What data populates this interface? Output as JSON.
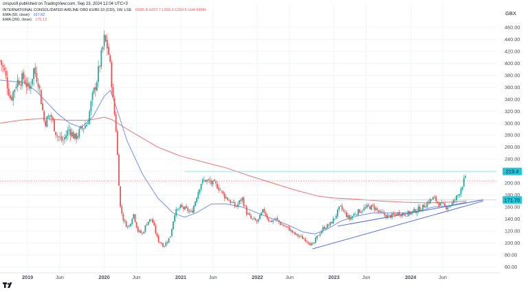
{
  "header": {
    "line": "crispus9 published on TradingView.com, Sep 23, 2024 12:04 UTC+3"
  },
  "symbol": {
    "name": "INTERNATIONAL CONSOLIDATED AIRLINE ORD EUR0.10 (CDI), 1W, LSE",
    "ohlc": "O205.8  H207.7  L203.3  C203.5  Vol4.568M"
  },
  "legend": [
    {
      "label": "EMA (50, close)",
      "value": "167.62",
      "color": "#2962ff"
    },
    {
      "label": "EMA (200, close)",
      "value": "170.12",
      "color": "#ef5350"
    }
  ],
  "colors": {
    "up": "#26a69a",
    "down": "#ef5350",
    "ema50": "#6e8fe8",
    "ema200": "#e57373",
    "trend": "#3d5bd9",
    "grid": "#f0f3fa",
    "text": "#131722",
    "axisText": "#4a4e59"
  },
  "chart_data": {
    "type": "candlestick",
    "currency": "GBX",
    "y_ticks": [
      "460.00",
      "440.00",
      "420.00",
      "400.00",
      "380.00",
      "360.00",
      "340.00",
      "320.00",
      "300.00",
      "280.00",
      "260.00",
      "240.00",
      "220.00",
      "200.00",
      "180.00",
      "160.00",
      "140.00",
      "120.00",
      "100.00",
      "80.00",
      "60.00"
    ],
    "ylim": [
      50,
      475
    ],
    "x_tick_labels": [
      {
        "label": "2019",
        "t": 2019.0
      },
      {
        "label": "Jun",
        "t": 2019.42
      },
      {
        "label": "2020",
        "t": 2020.0
      },
      {
        "label": "Jun",
        "t": 2020.42
      },
      {
        "label": "2021",
        "t": 2021.0
      },
      {
        "label": "Jun",
        "t": 2021.42
      },
      {
        "label": "2022",
        "t": 2022.0
      },
      {
        "label": "Jun",
        "t": 2022.42
      },
      {
        "label": "2023",
        "t": 2023.0
      },
      {
        "label": "Jun",
        "t": 2023.42
      },
      {
        "label": "2024",
        "t": 2024.0
      },
      {
        "label": "Jun",
        "t": 2024.42
      }
    ],
    "xlim": [
      2018.64,
      2025.12
    ],
    "price_labels": [
      {
        "text": "219.4",
        "value": 219.4,
        "bg": "#26c6da",
        "fg": "#131722"
      },
      {
        "text": "171.70",
        "value": 171.7,
        "bg": "#26c6da",
        "fg": "#131722"
      }
    ],
    "horizontal_lines": [
      {
        "value": 219.4,
        "from": 2021.05,
        "color": "#80deea",
        "style": "solid"
      },
      {
        "value": 203.5,
        "from": 2018.64,
        "color": "#ef5350",
        "style": "dotted"
      },
      {
        "value": 171.7,
        "from": 2023.0,
        "color": "#80deea",
        "style": "solid"
      }
    ],
    "trendlines": [
      {
        "from": [
          2022.72,
          90
        ],
        "to": [
          2024.95,
          170
        ]
      },
      {
        "from": [
          2023.05,
          128
        ],
        "to": [
          2024.95,
          172
        ]
      }
    ],
    "anchors": [
      [
        2018.64,
        405
      ],
      [
        2018.7,
        385
      ],
      [
        2018.78,
        340
      ],
      [
        2018.86,
        370
      ],
      [
        2018.95,
        375
      ],
      [
        2019.02,
        355
      ],
      [
        2019.08,
        390
      ],
      [
        2019.14,
        370
      ],
      [
        2019.22,
        300
      ],
      [
        2019.3,
        315
      ],
      [
        2019.38,
        280
      ],
      [
        2019.46,
        270
      ],
      [
        2019.54,
        290
      ],
      [
        2019.62,
        275
      ],
      [
        2019.7,
        290
      ],
      [
        2019.78,
        300
      ],
      [
        2019.84,
        340
      ],
      [
        2019.9,
        370
      ],
      [
        2019.96,
        410
      ],
      [
        2020.0,
        440
      ],
      [
        2020.05,
        425
      ],
      [
        2020.09,
        380
      ],
      [
        2020.12,
        330
      ],
      [
        2020.15,
        300
      ],
      [
        2020.18,
        230
      ],
      [
        2020.21,
        160
      ],
      [
        2020.26,
        135
      ],
      [
        2020.32,
        125
      ],
      [
        2020.38,
        150
      ],
      [
        2020.44,
        120
      ],
      [
        2020.5,
        115
      ],
      [
        2020.56,
        135
      ],
      [
        2020.62,
        140
      ],
      [
        2020.7,
        105
      ],
      [
        2020.78,
        95
      ],
      [
        2020.86,
        110
      ],
      [
        2020.92,
        150
      ],
      [
        2021.0,
        160
      ],
      [
        2021.08,
        155
      ],
      [
        2021.14,
        150
      ],
      [
        2021.2,
        175
      ],
      [
        2021.26,
        200
      ],
      [
        2021.32,
        205
      ],
      [
        2021.4,
        200
      ],
      [
        2021.48,
        195
      ],
      [
        2021.56,
        180
      ],
      [
        2021.64,
        170
      ],
      [
        2021.72,
        160
      ],
      [
        2021.8,
        175
      ],
      [
        2021.86,
        150
      ],
      [
        2021.92,
        140
      ],
      [
        2022.0,
        135
      ],
      [
        2022.08,
        155
      ],
      [
        2022.16,
        135
      ],
      [
        2022.24,
        140
      ],
      [
        2022.32,
        130
      ],
      [
        2022.4,
        125
      ],
      [
        2022.48,
        115
      ],
      [
        2022.56,
        110
      ],
      [
        2022.64,
        105
      ],
      [
        2022.72,
        95
      ],
      [
        2022.78,
        110
      ],
      [
        2022.86,
        125
      ],
      [
        2022.94,
        130
      ],
      [
        2023.0,
        140
      ],
      [
        2023.08,
        160
      ],
      [
        2023.14,
        150
      ],
      [
        2023.2,
        140
      ],
      [
        2023.28,
        150
      ],
      [
        2023.36,
        155
      ],
      [
        2023.44,
        160
      ],
      [
        2023.52,
        160
      ],
      [
        2023.6,
        150
      ],
      [
        2023.68,
        145
      ],
      [
        2023.76,
        145
      ],
      [
        2023.84,
        150
      ],
      [
        2023.92,
        148
      ],
      [
        2024.0,
        150
      ],
      [
        2024.08,
        155
      ],
      [
        2024.16,
        160
      ],
      [
        2024.24,
        170
      ],
      [
        2024.3,
        175
      ],
      [
        2024.38,
        165
      ],
      [
        2024.46,
        160
      ],
      [
        2024.54,
        165
      ],
      [
        2024.62,
        180
      ],
      [
        2024.7,
        205
      ],
      [
        2024.73,
        207
      ]
    ],
    "ema50": [
      [
        2018.64,
        372
      ],
      [
        2018.8,
        370
      ],
      [
        2018.95,
        368
      ],
      [
        2019.1,
        355
      ],
      [
        2019.25,
        335
      ],
      [
        2019.4,
        315
      ],
      [
        2019.55,
        300
      ],
      [
        2019.7,
        293
      ],
      [
        2019.85,
        310
      ],
      [
        2020.0,
        345
      ],
      [
        2020.08,
        355
      ],
      [
        2020.15,
        330
      ],
      [
        2020.3,
        270
      ],
      [
        2020.5,
        215
      ],
      [
        2020.7,
        175
      ],
      [
        2020.9,
        150
      ],
      [
        2021.05,
        143
      ],
      [
        2021.2,
        150
      ],
      [
        2021.4,
        165
      ],
      [
        2021.6,
        165
      ],
      [
        2021.8,
        160
      ],
      [
        2022.0,
        150
      ],
      [
        2022.2,
        140
      ],
      [
        2022.4,
        130
      ],
      [
        2022.6,
        118
      ],
      [
        2022.75,
        115
      ],
      [
        2022.9,
        122
      ],
      [
        2023.1,
        137
      ],
      [
        2023.3,
        145
      ],
      [
        2023.5,
        150
      ],
      [
        2023.7,
        150
      ],
      [
        2023.9,
        150
      ],
      [
        2024.1,
        153
      ],
      [
        2024.3,
        160
      ],
      [
        2024.5,
        162
      ],
      [
        2024.73,
        168
      ]
    ],
    "ema200": [
      [
        2018.64,
        300
      ],
      [
        2018.9,
        305
      ],
      [
        2019.2,
        308
      ],
      [
        2019.5,
        305
      ],
      [
        2019.8,
        305
      ],
      [
        2020.0,
        310
      ],
      [
        2020.1,
        306
      ],
      [
        2020.3,
        290
      ],
      [
        2020.5,
        275
      ],
      [
        2020.7,
        260
      ],
      [
        2021.0,
        245
      ],
      [
        2021.3,
        235
      ],
      [
        2021.6,
        225
      ],
      [
        2021.9,
        212
      ],
      [
        2022.2,
        200
      ],
      [
        2022.5,
        188
      ],
      [
        2022.8,
        178
      ],
      [
        2023.0,
        175
      ],
      [
        2023.3,
        173
      ],
      [
        2023.6,
        170
      ],
      [
        2023.9,
        168
      ],
      [
        2024.2,
        167
      ],
      [
        2024.5,
        168
      ],
      [
        2024.73,
        170
      ]
    ]
  },
  "watermark": "TV"
}
